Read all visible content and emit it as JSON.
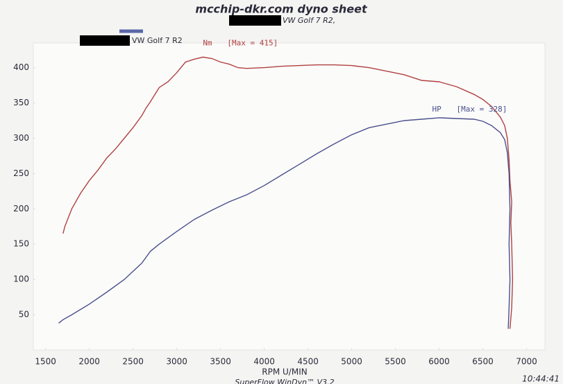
{
  "chart_data": {
    "type": "line",
    "title": "mcchip-dkr.com dyno sheet",
    "subtitle": "VW Golf 7 R2,",
    "legend": {
      "label": "VW Golf 7 R2",
      "color": "#5a67a8"
    },
    "x_label": "RPM  U/MIN",
    "footer": "SuperFlow WinDyn™ V3.2",
    "time": "10:44:41",
    "xlim": [
      1360,
      7210
    ],
    "ylim": [
      0,
      435
    ],
    "xticks": [
      1500,
      2000,
      2500,
      3000,
      3500,
      4000,
      4500,
      5000,
      5500,
      6000,
      6500,
      7000
    ],
    "yticks": [
      50,
      100,
      150,
      200,
      250,
      300,
      350,
      400
    ],
    "series": [
      {
        "name": "Nm",
        "annotation": "[Max = 415]",
        "color": "#b0403f",
        "x": [
          1700,
          1720,
          1800,
          1900,
          2000,
          2100,
          2200,
          2300,
          2400,
          2500,
          2600,
          2650,
          2700,
          2800,
          2900,
          3000,
          3100,
          3200,
          3300,
          3400,
          3500,
          3600,
          3700,
          3800,
          4000,
          4200,
          4400,
          4600,
          4800,
          5000,
          5200,
          5400,
          5600,
          5800,
          6000,
          6200,
          6400,
          6500,
          6600,
          6700,
          6750,
          6780,
          6800,
          6810,
          6830,
          6820,
          6830,
          6840,
          6830,
          6810
        ],
        "values": [
          165,
          175,
          200,
          222,
          240,
          255,
          272,
          285,
          300,
          315,
          332,
          343,
          352,
          372,
          380,
          393,
          408,
          412,
          415,
          413,
          408,
          405,
          400,
          399,
          400,
          402,
          403,
          404,
          404,
          403,
          400,
          395,
          390,
          382,
          380,
          373,
          362,
          355,
          345,
          330,
          318,
          300,
          270,
          240,
          210,
          180,
          150,
          100,
          60,
          30
        ]
      },
      {
        "name": "HP",
        "annotation": "[Max = 328]",
        "color": "#4a4f8c",
        "x": [
          1650,
          1700,
          1800,
          2000,
          2200,
          2400,
          2600,
          2700,
          2800,
          3000,
          3200,
          3400,
          3600,
          3800,
          4000,
          4200,
          4400,
          4600,
          4800,
          5000,
          5200,
          5400,
          5600,
          5800,
          6000,
          6200,
          6400,
          6500,
          6600,
          6700,
          6750,
          6780,
          6800,
          6810,
          6800,
          6810,
          6800,
          6790
        ],
        "values": [
          38,
          43,
          50,
          65,
          82,
          100,
          123,
          140,
          150,
          168,
          185,
          198,
          210,
          220,
          233,
          248,
          263,
          278,
          292,
          305,
          315,
          320,
          325,
          327,
          329,
          328,
          327,
          324,
          318,
          308,
          298,
          280,
          250,
          200,
          150,
          100,
          60,
          30
        ]
      }
    ]
  }
}
